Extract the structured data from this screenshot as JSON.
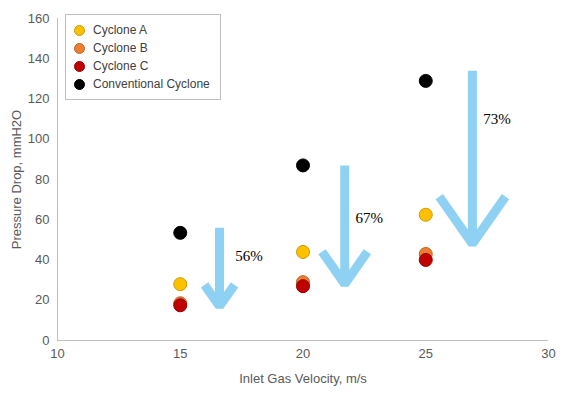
{
  "chart_data": {
    "type": "scatter",
    "marker": "circle",
    "xlabel": "Inlet Gas Velocity, m/s",
    "ylabel": "Pressure Drop, mmH2O",
    "xlim": [
      10,
      30
    ],
    "xticks": [
      10,
      15,
      20,
      25,
      30
    ],
    "ylim": [
      0,
      160
    ],
    "yticks": [
      0,
      20,
      40,
      60,
      80,
      100,
      120,
      140,
      160
    ],
    "grid": false,
    "legend": "upper left",
    "x": [
      15,
      20,
      25
    ],
    "series": [
      {
        "name": "Cyclone A",
        "color": "#FFC000",
        "values": [
          28,
          44,
          62.5
        ]
      },
      {
        "name": "Cyclone B",
        "color": "#ED7D31",
        "values": [
          18.5,
          29,
          43
        ]
      },
      {
        "name": "Cyclone C",
        "color": "#C00000",
        "values": [
          17.5,
          27,
          40
        ]
      },
      {
        "name": "Conventional Cyclone",
        "color": "#000000",
        "values": [
          53.5,
          87,
          129
        ]
      }
    ],
    "annotations": [
      {
        "text": "56%",
        "x": 17.8,
        "y": 42,
        "arrow_x": 16.6,
        "arrow_from": 56,
        "arrow_to": 17
      },
      {
        "text": "67%",
        "x": 22.7,
        "y": 61,
        "arrow_x": 21.7,
        "arrow_from": 87,
        "arrow_to": 28
      },
      {
        "text": "73%",
        "x": 27.9,
        "y": 110,
        "arrow_x": 26.9,
        "arrow_from": 134,
        "arrow_to": 48
      }
    ]
  }
}
